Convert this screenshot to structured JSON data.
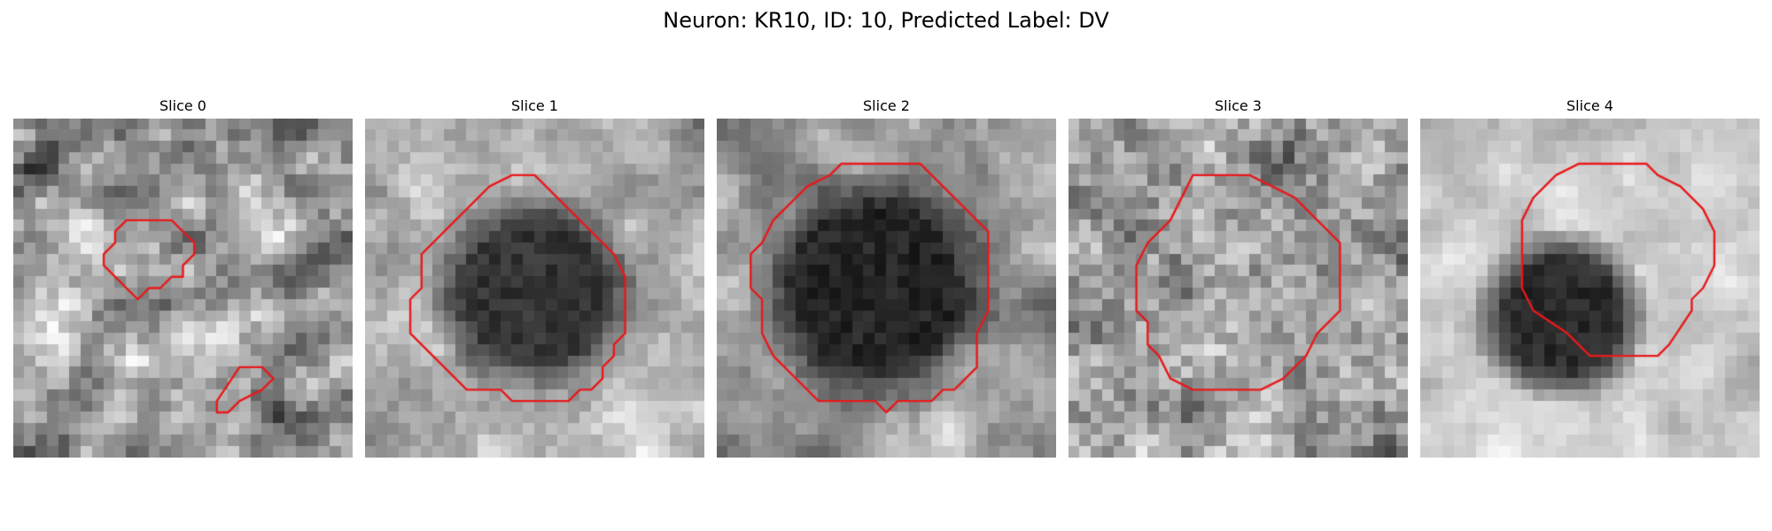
{
  "figure": {
    "title": "Neuron: KR10, ID: 10, Predicted Label: DV",
    "outline_color": "#e8191b"
  },
  "panels": [
    {
      "title": "Slice 0",
      "description": "grayscale microscopy patch, light speckled texture with a small irregular red outline in the upper-middle and a tiny red outline near the bottom",
      "outlines": [
        [
          [
            13,
            9
          ],
          [
            10,
            9
          ],
          [
            9,
            10
          ],
          [
            9,
            11
          ],
          [
            8,
            12
          ],
          [
            8,
            13
          ],
          [
            10,
            15
          ],
          [
            11,
            16
          ],
          [
            12,
            15
          ],
          [
            13,
            15
          ],
          [
            14,
            14
          ],
          [
            15,
            14
          ],
          [
            15,
            13
          ],
          [
            16,
            12
          ],
          [
            16,
            11
          ],
          [
            15,
            10
          ],
          [
            14,
            9
          ]
        ],
        [
          [
            20,
            22
          ],
          [
            22,
            22
          ],
          [
            23,
            23
          ],
          [
            22,
            24
          ],
          [
            20,
            25
          ],
          [
            19,
            26
          ],
          [
            18,
            26
          ],
          [
            18,
            25
          ]
        ]
      ]
    },
    {
      "title": "Slice 1",
      "description": "grayscale microscopy patch with a large dark round soma outlined in red",
      "outlines": [
        [
          [
            13,
            5
          ],
          [
            15,
            5
          ],
          [
            16,
            6
          ],
          [
            17,
            7
          ],
          [
            19,
            9
          ],
          [
            20,
            10
          ],
          [
            22,
            12
          ],
          [
            23,
            14
          ],
          [
            23,
            17
          ],
          [
            23,
            19
          ],
          [
            22,
            20
          ],
          [
            22,
            21
          ],
          [
            21,
            22
          ],
          [
            21,
            23
          ],
          [
            20,
            24
          ],
          [
            19,
            24
          ],
          [
            18,
            25
          ],
          [
            13,
            25
          ],
          [
            12,
            24
          ],
          [
            9,
            24
          ],
          [
            7,
            22
          ],
          [
            5,
            20
          ],
          [
            4,
            19
          ],
          [
            4,
            16
          ],
          [
            5,
            15
          ],
          [
            5,
            12
          ],
          [
            6,
            11
          ],
          [
            7,
            10
          ],
          [
            9,
            8
          ],
          [
            11,
            6
          ]
        ]
      ]
    },
    {
      "title": "Slice 2",
      "description": "grayscale microscopy patch with a very dark round soma filling most of the patch, outlined in red",
      "outlines": [
        [
          [
            11,
            4
          ],
          [
            18,
            4
          ],
          [
            19,
            5
          ],
          [
            21,
            7
          ],
          [
            22,
            8
          ],
          [
            23,
            9
          ],
          [
            24,
            10
          ],
          [
            24,
            17
          ],
          [
            23,
            19
          ],
          [
            23,
            22
          ],
          [
            21,
            24
          ],
          [
            20,
            24
          ],
          [
            19,
            25
          ],
          [
            16,
            25
          ],
          [
            15,
            26
          ],
          [
            14,
            25
          ],
          [
            9,
            25
          ],
          [
            8,
            24
          ],
          [
            7,
            23
          ],
          [
            6,
            22
          ],
          [
            5,
            21
          ],
          [
            4,
            19
          ],
          [
            4,
            16
          ],
          [
            3,
            15
          ],
          [
            3,
            12
          ],
          [
            4,
            11
          ],
          [
            5,
            9
          ],
          [
            7,
            7
          ],
          [
            8,
            6
          ],
          [
            10,
            5
          ]
        ]
      ]
    },
    {
      "title": "Slice 3",
      "description": "grayscale microscopy patch with a noisy mid-gray region outlined by a large octagon-like red contour",
      "outlines": [
        [
          [
            11,
            5
          ],
          [
            16,
            5
          ],
          [
            18,
            6
          ],
          [
            20,
            7
          ],
          [
            21,
            8
          ],
          [
            23,
            10
          ],
          [
            24,
            11
          ],
          [
            24,
            17
          ],
          [
            22,
            19
          ],
          [
            21,
            21
          ],
          [
            19,
            23
          ],
          [
            17,
            24
          ],
          [
            11,
            24
          ],
          [
            9,
            23
          ],
          [
            8,
            21
          ],
          [
            7,
            20
          ],
          [
            7,
            18
          ],
          [
            6,
            17
          ],
          [
            6,
            13
          ],
          [
            7,
            11
          ],
          [
            9,
            9
          ],
          [
            10,
            7
          ]
        ]
      ]
    },
    {
      "title": "Slice 4",
      "description": "grayscale microscopy patch, bright background with a dark blob in the lower-left, red polygon outline in the upper-right-center",
      "outlines": [
        [
          [
            14,
            4
          ],
          [
            20,
            4
          ],
          [
            21,
            5
          ],
          [
            23,
            6
          ],
          [
            24,
            7
          ],
          [
            25,
            8
          ],
          [
            26,
            10
          ],
          [
            26,
            13
          ],
          [
            25,
            15
          ],
          [
            24,
            16
          ],
          [
            24,
            17
          ],
          [
            22,
            20
          ],
          [
            21,
            21
          ],
          [
            15,
            21
          ],
          [
            13,
            19
          ],
          [
            10,
            17
          ],
          [
            9,
            15
          ],
          [
            9,
            9
          ],
          [
            10,
            7
          ],
          [
            12,
            5
          ]
        ]
      ]
    }
  ]
}
